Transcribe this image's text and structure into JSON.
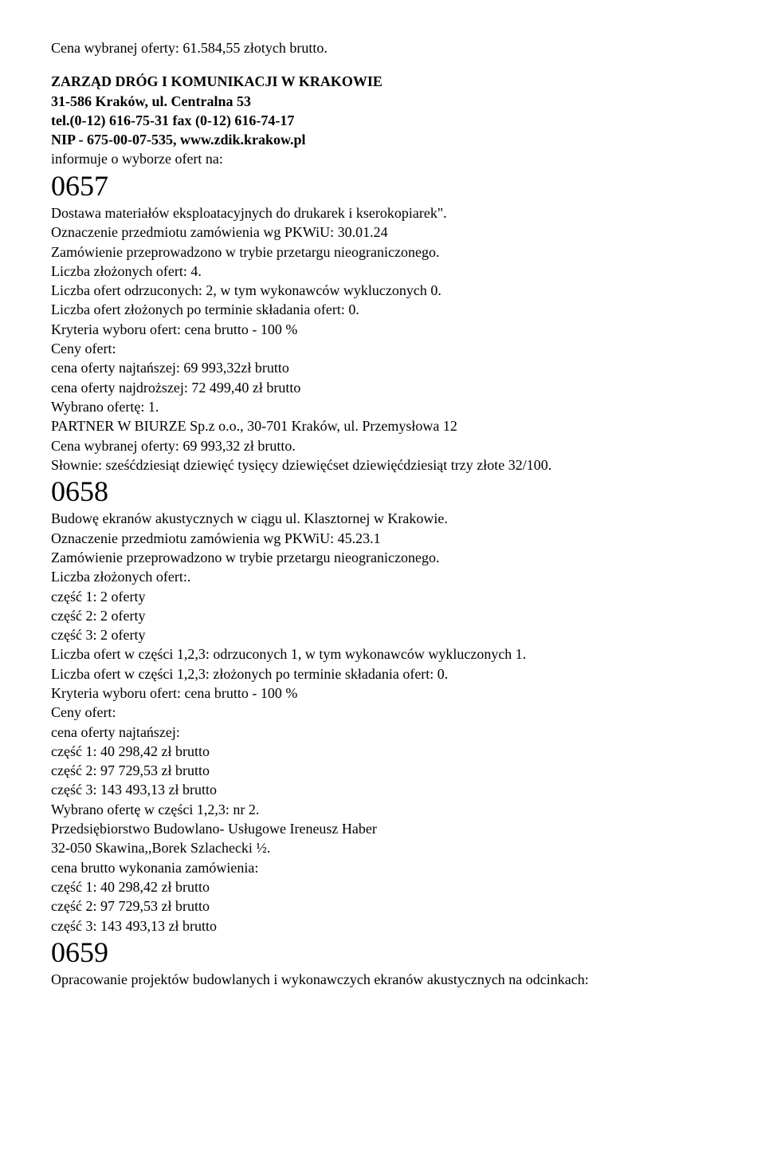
{
  "header": {
    "prev_price": "Cena wybranej oferty: 61.584,55 złotych brutto.",
    "org_line1": "ZARZĄD DRÓG I KOMUNIKACJI W KRAKOWIE",
    "org_line2": "31-586 Kraków, ul. Centralna 53",
    "org_line3": "tel.(0-12) 616-75-31 fax (0-12) 616-74-17",
    "org_line4": "NIP - 675-00-07-535, www.zdik.krakow.pl",
    "inform": "informuje o wyborze ofert na:"
  },
  "s0657": {
    "num": "0657",
    "l1": "Dostawa materiałów eksploatacyjnych do drukarek i kserokopiarek\".",
    "l2": "Oznaczenie przedmiotu zamówienia wg PKWiU: 30.01.24",
    "l3": "Zamówienie przeprowadzono w trybie przetargu nieograniczonego.",
    "l4": "Liczba złożonych ofert: 4.",
    "l5": "Liczba ofert odrzuconych: 2, w tym wykonawców wykluczonych 0.",
    "l6": "Liczba ofert złożonych po terminie składania ofert: 0.",
    "l7": "Kryteria wyboru ofert: cena brutto - 100 %",
    "l8": "Ceny ofert:",
    "l9": "cena oferty najtańszej: 69 993,32zł brutto",
    "l10": "cena oferty najdroższej: 72 499,40 zł brutto",
    "l11": "Wybrano ofertę: 1.",
    "l12": "PARTNER W BIURZE Sp.z o.o., 30-701 Kraków, ul. Przemysłowa 12",
    "l13": "Cena wybranej oferty: 69 993,32 zł brutto.",
    "l14": "Słownie: sześćdziesiąt dziewięć tysięcy dziewięćset dziewięćdziesiąt trzy złote 32/100."
  },
  "s0658": {
    "num": "0658",
    "l1": "Budowę ekranów akustycznych w ciągu ul. Klasztornej w Krakowie.",
    "l2": "Oznaczenie przedmiotu zamówienia wg PKWiU: 45.23.1",
    "l3": "Zamówienie przeprowadzono w trybie przetargu nieograniczonego.",
    "l4": "Liczba złożonych ofert:.",
    "l5": "część 1: 2 oferty",
    "l6": "część 2: 2 oferty",
    "l7": "część 3: 2 oferty",
    "l8": "Liczba ofert w części 1,2,3: odrzuconych 1, w tym wykonawców wykluczonych 1.",
    "l9": "Liczba ofert w części 1,2,3: złożonych po terminie składania ofert: 0.",
    "l10": "Kryteria wyboru ofert: cena brutto - 100 %",
    "l11": "Ceny ofert:",
    "l12": "cena oferty najtańszej:",
    "l13": "część 1: 40 298,42 zł brutto",
    "l14": "część 2: 97 729,53 zł brutto",
    "l15": "część 3: 143 493,13 zł brutto",
    "l16": "Wybrano ofertę w części 1,2,3: nr 2.",
    "l17": "Przedsiębiorstwo Budowlano- Usługowe Ireneusz Haber",
    "l18": "32-050 Skawina,,Borek Szlachecki ½.",
    "l19": "cena brutto wykonania zamówienia:",
    "l20": "część 1: 40 298,42 zł brutto",
    "l21": "część 2: 97 729,53 zł brutto",
    "l22": "część 3: 143 493,13 zł brutto"
  },
  "s0659": {
    "num": "0659",
    "l1": "Opracowanie projektów budowlanych i wykonawczych ekranów akustycznych na odcinkach:"
  }
}
